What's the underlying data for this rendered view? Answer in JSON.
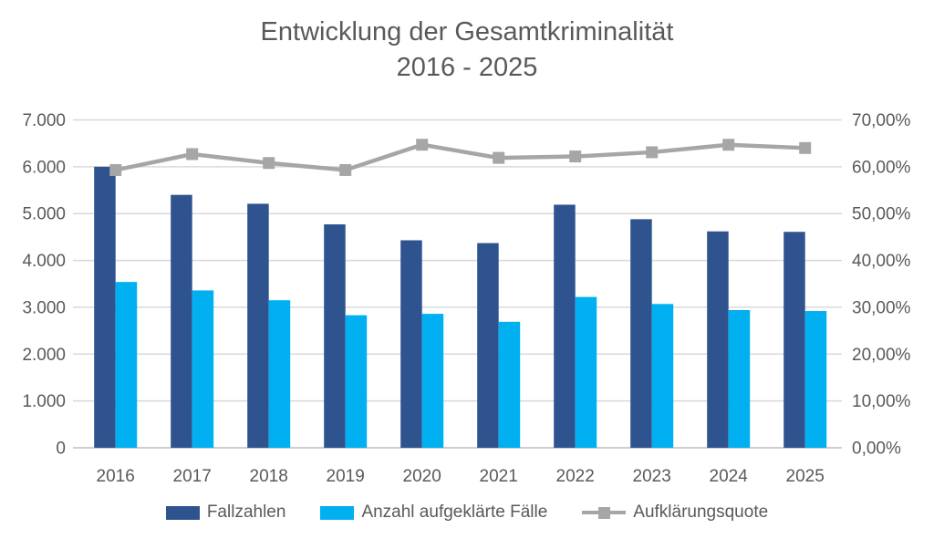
{
  "title": {
    "line1": "Entwicklung der Gesamtkriminalität",
    "line2": "2016 - 2025"
  },
  "legend": {
    "items": [
      {
        "label": "Fallzahlen",
        "marker": "bar",
        "color": "#2E538F"
      },
      {
        "label": "Anzahl aufgeklärte Fälle",
        "marker": "bar",
        "color": "#00B0F0"
      },
      {
        "label": "Aufklärungsquote",
        "marker": "line-square",
        "color": "#A6A6A6"
      }
    ]
  },
  "chart_data": {
    "type": "bar",
    "title": "Entwicklung der Gesamtkriminalität 2016 - 2025",
    "categories": [
      "2016",
      "2017",
      "2018",
      "2019",
      "2020",
      "2021",
      "2022",
      "2023",
      "2024",
      "2025"
    ],
    "series": [
      {
        "name": "Fallzahlen",
        "type": "bar",
        "axis": "left",
        "color": "#2E538F",
        "values": [
          6000,
          5400,
          5210,
          4770,
          4430,
          4370,
          5190,
          4880,
          4620,
          4610
        ]
      },
      {
        "name": "Anzahl aufgeklärte Fälle",
        "type": "bar",
        "axis": "left",
        "color": "#00B0F0",
        "values": [
          3540,
          3360,
          3150,
          2830,
          2860,
          2690,
          3220,
          3070,
          2940,
          2920
        ]
      },
      {
        "name": "Aufklärungsquote",
        "type": "line",
        "axis": "right",
        "color": "#A6A6A6",
        "values": [
          59.3,
          62.7,
          60.8,
          59.3,
          64.7,
          61.9,
          62.2,
          63.1,
          64.7,
          64.0
        ]
      }
    ],
    "left_axis": {
      "min": 0,
      "max": 7000,
      "step": 1000,
      "tick_labels_top_down": [
        "7.000",
        "6.000",
        "5.000",
        "4.000",
        "3.000",
        "2.000",
        "1.000",
        "0"
      ]
    },
    "right_axis": {
      "min": 0,
      "max": 70,
      "step": 10,
      "unit": "%",
      "tick_labels_top_down": [
        "70,00%",
        "60,00%",
        "50,00%",
        "40,00%",
        "30,00%",
        "20,00%",
        "10,00%",
        "0,00%"
      ]
    },
    "grid": "horizontal",
    "legend_position": "bottom",
    "style": {
      "grid_color": "#D9D9D9",
      "axis_line_color": "#BFBFBF",
      "tick_label_color": "#595959",
      "title_color": "#595959"
    }
  }
}
